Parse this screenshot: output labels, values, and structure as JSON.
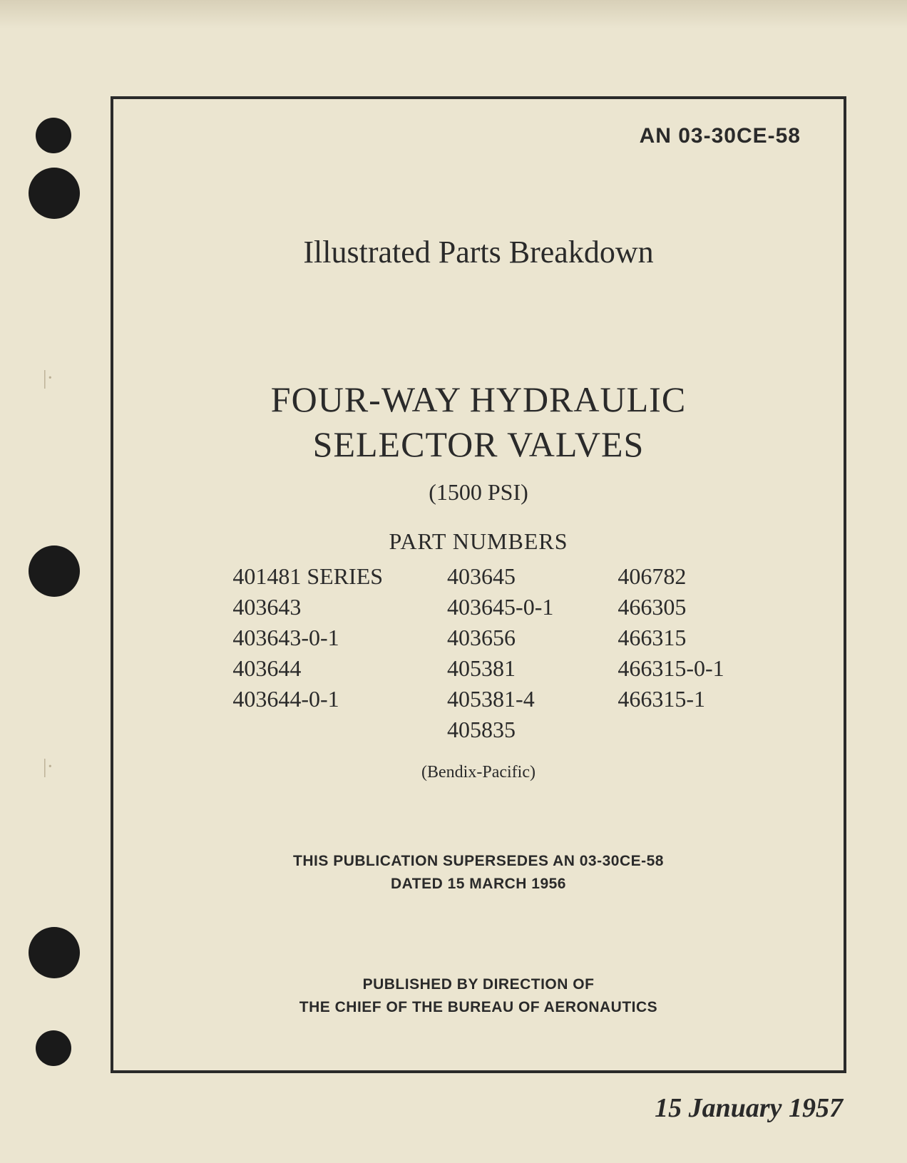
{
  "document_id": "AN 03-30CE-58",
  "subtitle": "Illustrated Parts Breakdown",
  "main_title_line1": "FOUR-WAY HYDRAULIC",
  "main_title_line2": "SELECTOR VALVES",
  "psi": "(1500 PSI)",
  "part_numbers_label": "PART NUMBERS",
  "part_numbers": {
    "col1": [
      "401481 SERIES",
      "403643",
      "403643-0-1",
      "403644",
      "403644-0-1"
    ],
    "col2": [
      "403645",
      "403645-0-1",
      "403656",
      "405381",
      "405381-4",
      "405835"
    ],
    "col3": [
      "406782",
      "466305",
      "466315",
      "466315-0-1",
      "466315-1"
    ]
  },
  "manufacturer": "(Bendix-Pacific)",
  "supersedes_line1": "THIS PUBLICATION SUPERSEDES AN 03-30CE-58",
  "supersedes_line2": "DATED 15 MARCH 1956",
  "published_line1": "PUBLISHED BY DIRECTION OF",
  "published_line2": "THE CHIEF OF THE BUREAU OF AERONAUTICS",
  "date": "15 January 1957",
  "colors": {
    "paper_bg": "#ebe5d0",
    "text": "#2a2a2a",
    "border": "#2a2a2a",
    "hole": "#1a1a1a"
  }
}
